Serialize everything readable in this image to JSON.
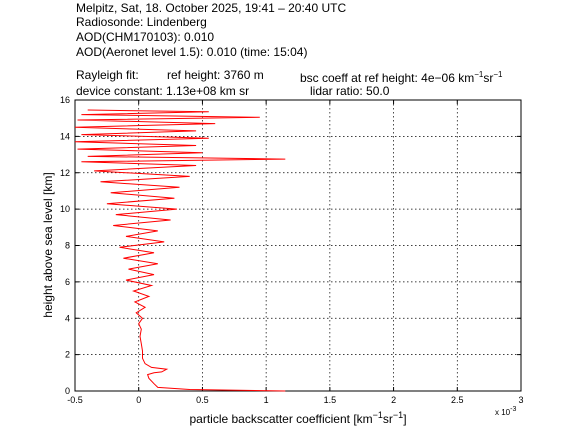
{
  "header": {
    "line1": "Melpitz, Sat, 18. October 2025, 19:41 – 20:40 UTC",
    "line2": "Radiosonde: Lindenberg",
    "line3": "AOD(CHM170103): 0.010",
    "line4": "AOD(Aeronet level 1.5): 0.010   (time: 15:04)",
    "rayleigh_label": "Rayleigh fit:",
    "ref_height": "ref height: 3760 m",
    "bsc_coeff_prefix": "bsc coeff at ref height: 4e−06 km",
    "device_constant": "device constant: 1.13e+08 km sr",
    "lidar_ratio": "lidar ratio: 50.0"
  },
  "chart_data": {
    "type": "line",
    "xlabel_main": "particle backscatter coefficient [km",
    "xlabel_unit_sup1": "−1",
    "xlabel_unit_mid": "sr",
    "xlabel_unit_sup2": "−1",
    "xlabel_unit_end": "]",
    "ylabel": "height above sea level [km]",
    "x_multiplier_label": "x 10",
    "x_multiplier_exp": "-3",
    "xlim": [
      -0.5,
      3
    ],
    "ylim": [
      0,
      16
    ],
    "xticks": [
      -0.5,
      0,
      0.5,
      1,
      1.5,
      2,
      2.5,
      3
    ],
    "xtick_labels": [
      "-0.5",
      "0",
      "0.5",
      "1",
      "1.5",
      "2",
      "2.5",
      "3"
    ],
    "yticks": [
      0,
      2,
      4,
      6,
      8,
      10,
      12,
      14,
      16
    ],
    "ytick_labels": [
      "0",
      "2",
      "4",
      "6",
      "8",
      "10",
      "12",
      "14",
      "16"
    ],
    "grid": true,
    "line_color": "#ff0000",
    "series": [
      {
        "points": [
          [
            1.15,
            0.0
          ],
          [
            0.4,
            0.08
          ],
          [
            0.15,
            0.2
          ],
          [
            0.12,
            0.4
          ],
          [
            0.08,
            0.7
          ],
          [
            0.07,
            0.9
          ],
          [
            0.12,
            1.0
          ],
          [
            0.18,
            1.05
          ],
          [
            0.22,
            1.2
          ],
          [
            0.1,
            1.3
          ],
          [
            0.05,
            1.5
          ],
          [
            0.03,
            1.8
          ],
          [
            0.03,
            2.2
          ],
          [
            0.02,
            2.6
          ],
          [
            0.01,
            3.0
          ],
          [
            0.02,
            3.4
          ],
          [
            0.0,
            3.7
          ],
          [
            0.03,
            4.0
          ],
          [
            -0.02,
            4.3
          ],
          [
            0.05,
            4.6
          ],
          [
            -0.03,
            4.9
          ],
          [
            0.08,
            5.2
          ],
          [
            -0.04,
            5.5
          ],
          [
            0.1,
            5.8
          ],
          [
            -0.1,
            6.1
          ],
          [
            0.12,
            6.4
          ],
          [
            -0.08,
            6.7
          ],
          [
            0.15,
            7.0
          ],
          [
            -0.12,
            7.3
          ],
          [
            0.12,
            7.6
          ],
          [
            -0.15,
            7.9
          ],
          [
            0.2,
            8.2
          ],
          [
            -0.1,
            8.5
          ],
          [
            0.15,
            8.8
          ],
          [
            -0.2,
            9.1
          ],
          [
            0.25,
            9.4
          ],
          [
            -0.18,
            9.7
          ],
          [
            0.3,
            10.0
          ],
          [
            -0.25,
            10.3
          ],
          [
            0.28,
            10.6
          ],
          [
            -0.22,
            10.9
          ],
          [
            0.32,
            11.2
          ],
          [
            -0.3,
            11.5
          ],
          [
            0.4,
            11.8
          ],
          [
            -0.35,
            12.1
          ],
          [
            0.45,
            12.4
          ],
          [
            -0.45,
            12.6
          ],
          [
            1.15,
            12.75
          ],
          [
            -0.4,
            12.9
          ],
          [
            0.5,
            13.1
          ],
          [
            -0.48,
            13.3
          ],
          [
            0.45,
            13.5
          ],
          [
            -0.5,
            13.7
          ],
          [
            0.55,
            13.9
          ],
          [
            -0.45,
            14.1
          ],
          [
            0.45,
            14.3
          ],
          [
            -0.5,
            14.5
          ],
          [
            0.6,
            14.7
          ],
          [
            -0.48,
            14.9
          ],
          [
            0.95,
            15.05
          ],
          [
            -0.45,
            15.2
          ],
          [
            0.55,
            15.35
          ],
          [
            -0.4,
            15.45
          ]
        ]
      }
    ]
  }
}
